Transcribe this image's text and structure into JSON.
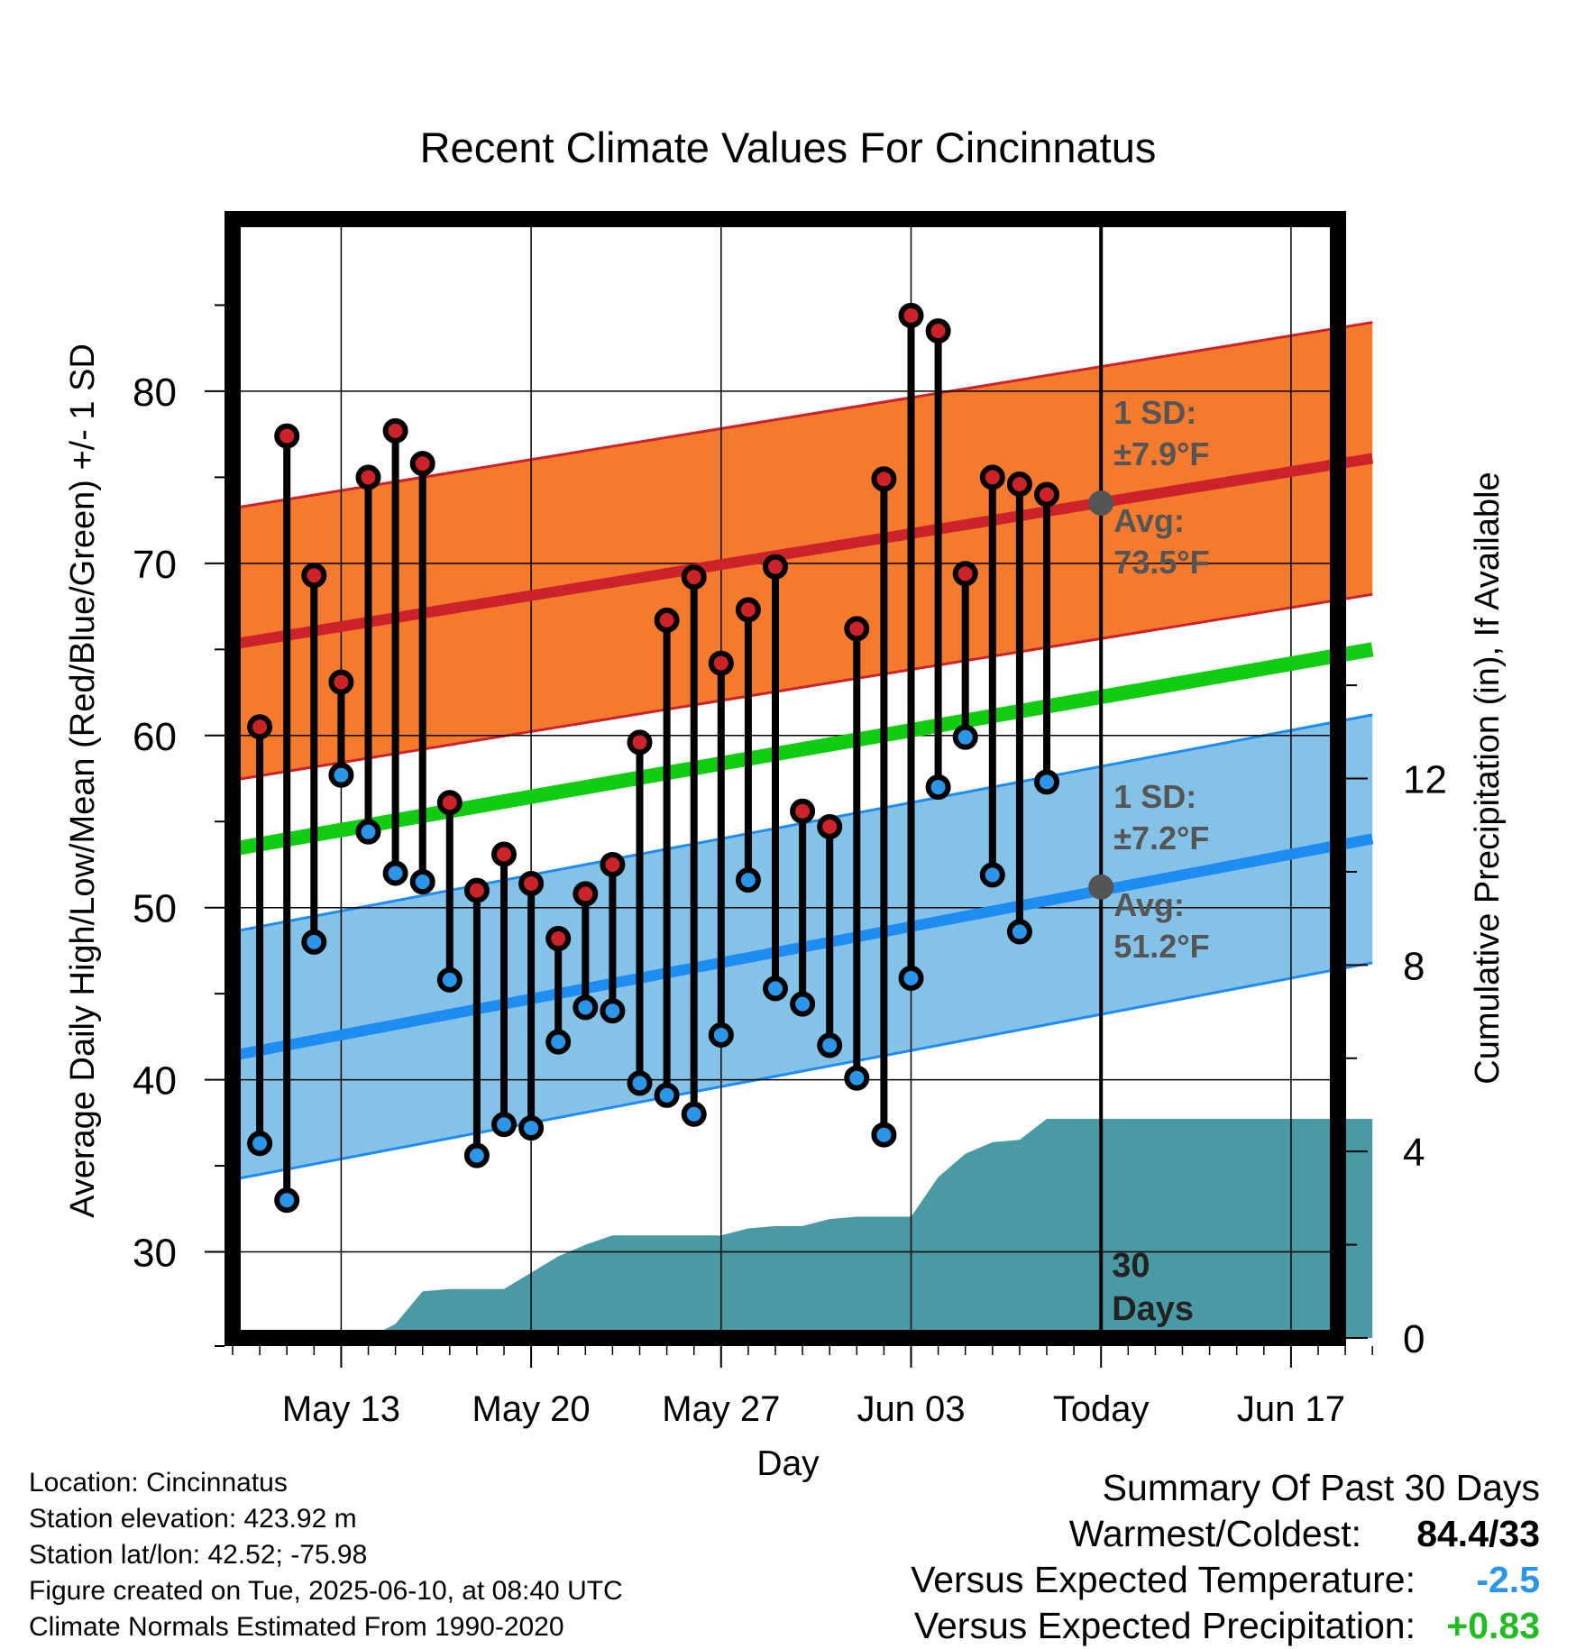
{
  "colors": {
    "high_marker": "#cc2229",
    "low_marker": "#2b95e8",
    "high_band": "#f47a2e",
    "high_avg_line": "#cc2229",
    "low_band": "#85c2e8",
    "low_avg_line": "#1e8cf0",
    "mean_line": "#11cc11",
    "precip_fill": "#4a9aa5",
    "annotation_text": "#555555",
    "temp_anomaly": "#2b95e8",
    "precip_anomaly": "#22bb22"
  },
  "chart_data": {
    "type": "line",
    "title": "Recent Climate Values For Cincinnatus",
    "xlabel": "Day",
    "ylabel_left": "Average Daily High/Low/Mean (Red/Blue/Green) +/- 1 SD",
    "ylabel_right": "Cumulative Precipitation (in), If Available",
    "x_range": [
      "2025-05-09",
      "2025-06-20"
    ],
    "x_ticks": [
      {
        "date": "2025-05-13",
        "label": "May 13"
      },
      {
        "date": "2025-05-20",
        "label": "May 20"
      },
      {
        "date": "2025-05-27",
        "label": "May 27"
      },
      {
        "date": "2025-06-03",
        "label": "Jun 03"
      },
      {
        "date": "2025-06-10",
        "label": "Today"
      },
      {
        "date": "2025-06-17",
        "label": "Jun 17"
      }
    ],
    "y_left_range": [
      25,
      90
    ],
    "y_left_ticks": [
      30,
      40,
      50,
      60,
      70,
      80
    ],
    "y_right_range": [
      0,
      24
    ],
    "y_right_ticks": [
      0,
      4,
      8,
      12
    ],
    "grid": true,
    "today": "2025-06-10",
    "today_label": "30 Days",
    "daily": [
      {
        "date": "2025-05-10",
        "high": 60.5,
        "low": 36.3
      },
      {
        "date": "2025-05-11",
        "high": 77.4,
        "low": 33.0
      },
      {
        "date": "2025-05-12",
        "high": 69.3,
        "low": 48.0
      },
      {
        "date": "2025-05-13",
        "high": 63.1,
        "low": 57.7
      },
      {
        "date": "2025-05-14",
        "high": 75.0,
        "low": 54.4
      },
      {
        "date": "2025-05-15",
        "high": 77.7,
        "low": 52.0
      },
      {
        "date": "2025-05-16",
        "high": 75.8,
        "low": 51.5
      },
      {
        "date": "2025-05-17",
        "high": 56.1,
        "low": 45.8
      },
      {
        "date": "2025-05-18",
        "high": 51.0,
        "low": 35.6
      },
      {
        "date": "2025-05-19",
        "high": 53.1,
        "low": 37.4
      },
      {
        "date": "2025-05-20",
        "high": 51.4,
        "low": 37.2
      },
      {
        "date": "2025-05-21",
        "high": 48.2,
        "low": 42.2
      },
      {
        "date": "2025-05-22",
        "high": 50.8,
        "low": 44.2
      },
      {
        "date": "2025-05-23",
        "high": 52.5,
        "low": 44.0
      },
      {
        "date": "2025-05-24",
        "high": 59.6,
        "low": 39.8
      },
      {
        "date": "2025-05-25",
        "high": 66.7,
        "low": 39.1
      },
      {
        "date": "2025-05-26",
        "high": 69.2,
        "low": 38.0
      },
      {
        "date": "2025-05-27",
        "high": 64.2,
        "low": 42.6
      },
      {
        "date": "2025-05-28",
        "high": 67.3,
        "low": 51.6
      },
      {
        "date": "2025-05-29",
        "high": 69.8,
        "low": 45.3
      },
      {
        "date": "2025-05-30",
        "high": 55.6,
        "low": 44.4
      },
      {
        "date": "2025-05-31",
        "high": 54.7,
        "low": 42.0
      },
      {
        "date": "2025-06-01",
        "high": 66.2,
        "low": 40.1
      },
      {
        "date": "2025-06-02",
        "high": 74.9,
        "low": 36.8
      },
      {
        "date": "2025-06-03",
        "high": 84.4,
        "low": 45.9
      },
      {
        "date": "2025-06-04",
        "high": 83.5,
        "low": 57.0
      },
      {
        "date": "2025-06-05",
        "high": 69.4,
        "low": 59.9
      },
      {
        "date": "2025-06-06",
        "high": 75.0,
        "low": 51.9
      },
      {
        "date": "2025-06-07",
        "high": 74.6,
        "low": 48.6
      },
      {
        "date": "2025-06-08",
        "high": 74.0,
        "low": 57.3
      }
    ],
    "normal_high": {
      "avg": [
        {
          "date": "2025-05-09",
          "value": 65.3
        },
        {
          "date": "2025-06-10",
          "value": 73.5
        },
        {
          "date": "2025-06-20",
          "value": 76.1
        }
      ],
      "sd": 7.9
    },
    "normal_low": {
      "avg": [
        {
          "date": "2025-05-09",
          "value": 41.4
        },
        {
          "date": "2025-06-10",
          "value": 51.2
        },
        {
          "date": "2025-06-20",
          "value": 54.0
        }
      ],
      "sd": 7.2
    },
    "normal_mean": [
      {
        "date": "2025-05-09",
        "value": 53.4
      },
      {
        "date": "2025-06-20",
        "value": 65.0
      }
    ],
    "precip_cumulative": [
      {
        "date": "2025-05-09",
        "value": 0.0
      },
      {
        "date": "2025-05-14",
        "value": 0.0
      },
      {
        "date": "2025-05-15",
        "value": 0.3
      },
      {
        "date": "2025-05-16",
        "value": 1.0
      },
      {
        "date": "2025-05-17",
        "value": 1.05
      },
      {
        "date": "2025-05-19",
        "value": 1.05
      },
      {
        "date": "2025-05-20",
        "value": 1.4
      },
      {
        "date": "2025-05-21",
        "value": 1.75
      },
      {
        "date": "2025-05-22",
        "value": 2.0
      },
      {
        "date": "2025-05-23",
        "value": 2.2
      },
      {
        "date": "2025-05-24",
        "value": 2.2
      },
      {
        "date": "2025-05-27",
        "value": 2.2
      },
      {
        "date": "2025-05-28",
        "value": 2.35
      },
      {
        "date": "2025-05-29",
        "value": 2.4
      },
      {
        "date": "2025-05-30",
        "value": 2.4
      },
      {
        "date": "2025-05-31",
        "value": 2.55
      },
      {
        "date": "2025-06-01",
        "value": 2.6
      },
      {
        "date": "2025-06-03",
        "value": 2.6
      },
      {
        "date": "2025-06-04",
        "value": 3.45
      },
      {
        "date": "2025-06-05",
        "value": 3.95
      },
      {
        "date": "2025-06-06",
        "value": 4.2
      },
      {
        "date": "2025-06-07",
        "value": 4.25
      },
      {
        "date": "2025-06-08",
        "value": 4.7
      },
      {
        "date": "2025-06-20",
        "value": 4.7
      }
    ],
    "annotations": {
      "high_sd_label": "1 SD:",
      "high_sd_value": "±7.9°F",
      "high_avg_label": "Avg:",
      "high_avg_value": "73.5°F",
      "low_sd_label": "1 SD:",
      "low_sd_value": "±7.2°F",
      "low_avg_label": "Avg:",
      "low_avg_value": "51.2°F",
      "days_number": "30",
      "days_word": "Days"
    }
  },
  "footer": {
    "location": "Location: Cincinnatus",
    "elevation": "Station elevation: 423.92 m",
    "latlon": "Station lat/lon: 42.52; -75.98",
    "created": "Figure created on Tue, 2025-06-10, at 08:40 UTC",
    "normals": "Climate Normals Estimated From 1990-2020"
  },
  "summary": {
    "heading": "Summary Of Past 30 Days",
    "warm_cold_label": "Warmest/Coldest:",
    "warm_cold_value": "84.4/33",
    "temp_label": "Versus Expected Temperature:",
    "temp_value": "-2.5",
    "precip_label": "Versus Expected Precipitation:",
    "precip_value": "+0.83"
  }
}
